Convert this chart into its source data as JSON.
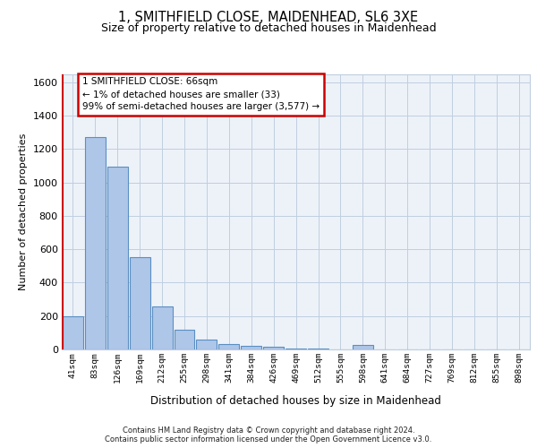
{
  "title1": "1, SMITHFIELD CLOSE, MAIDENHEAD, SL6 3XE",
  "title2": "Size of property relative to detached houses in Maidenhead",
  "xlabel": "Distribution of detached houses by size in Maidenhead",
  "ylabel": "Number of detached properties",
  "categories": [
    "41sqm",
    "83sqm",
    "126sqm",
    "169sqm",
    "212sqm",
    "255sqm",
    "298sqm",
    "341sqm",
    "384sqm",
    "426sqm",
    "469sqm",
    "512sqm",
    "555sqm",
    "598sqm",
    "641sqm",
    "684sqm",
    "727sqm",
    "769sqm",
    "812sqm",
    "855sqm",
    "898sqm"
  ],
  "values": [
    200,
    1270,
    1095,
    555,
    260,
    120,
    60,
    30,
    20,
    15,
    5,
    5,
    0,
    25,
    0,
    0,
    0,
    0,
    0,
    0,
    0
  ],
  "bar_color": "#aec6e8",
  "bar_edge_color": "#5a8fc2",
  "highlight_color": "#cc0000",
  "annotation_text": "1 SMITHFIELD CLOSE: 66sqm\n← 1% of detached houses are smaller (33)\n99% of semi-detached houses are larger (3,577) →",
  "ylim": [
    0,
    1650
  ],
  "yticks": [
    0,
    200,
    400,
    600,
    800,
    1000,
    1200,
    1400,
    1600
  ],
  "footer1": "Contains HM Land Registry data © Crown copyright and database right 2024.",
  "footer2": "Contains public sector information licensed under the Open Government Licence v3.0.",
  "plot_bg_color": "#edf2f9"
}
